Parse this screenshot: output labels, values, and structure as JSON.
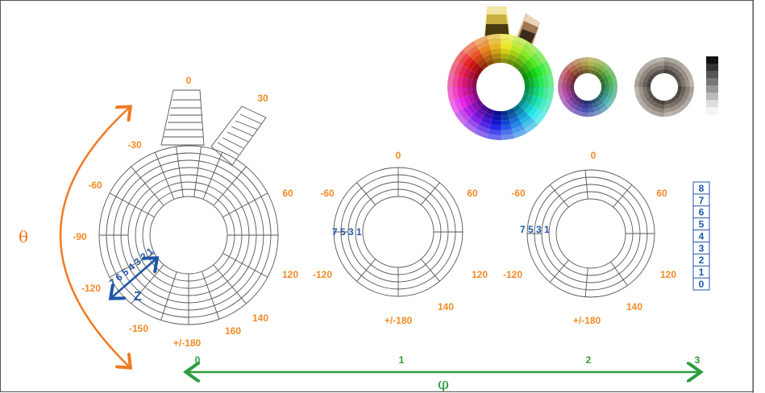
{
  "diagram": {
    "axes": {
      "theta_symbol": "θ",
      "phi_symbol": "φ",
      "z_symbol": "Z",
      "phi_ticks": [
        "0",
        "1",
        "2",
        "3"
      ]
    },
    "wheel_large": {
      "angle_labels": [
        "0",
        "30",
        "60",
        "120",
        "140",
        "160",
        "+/-180",
        "-150",
        "-120",
        "-90",
        "-60",
        "-30"
      ],
      "z_ring_labels": "7 6 5 4 3 2 1"
    },
    "wheel_mid": {
      "angle_labels": [
        "0",
        "60",
        "120",
        "140",
        "+/-180",
        "-120",
        "-60"
      ],
      "ring_labels": "7 5 3 1"
    },
    "wheel_right": {
      "angle_labels": [
        "0",
        "60",
        "120",
        "140",
        "+/-180",
        "-120",
        "-60"
      ],
      "ring_labels": "7 5 3 1"
    },
    "scale_legend": [
      "8",
      "7",
      "6",
      "5",
      "4",
      "3",
      "2",
      "1",
      "0"
    ],
    "colors": {
      "orange": "#f08a24",
      "green": "#2e9c3e",
      "blue": "#1f56a8",
      "line": "#555555"
    },
    "icons": [
      "color-wheel-icon",
      "muted-color-wheel-icon",
      "gray-wheel-icon",
      "grayscale-strip-icon"
    ]
  }
}
